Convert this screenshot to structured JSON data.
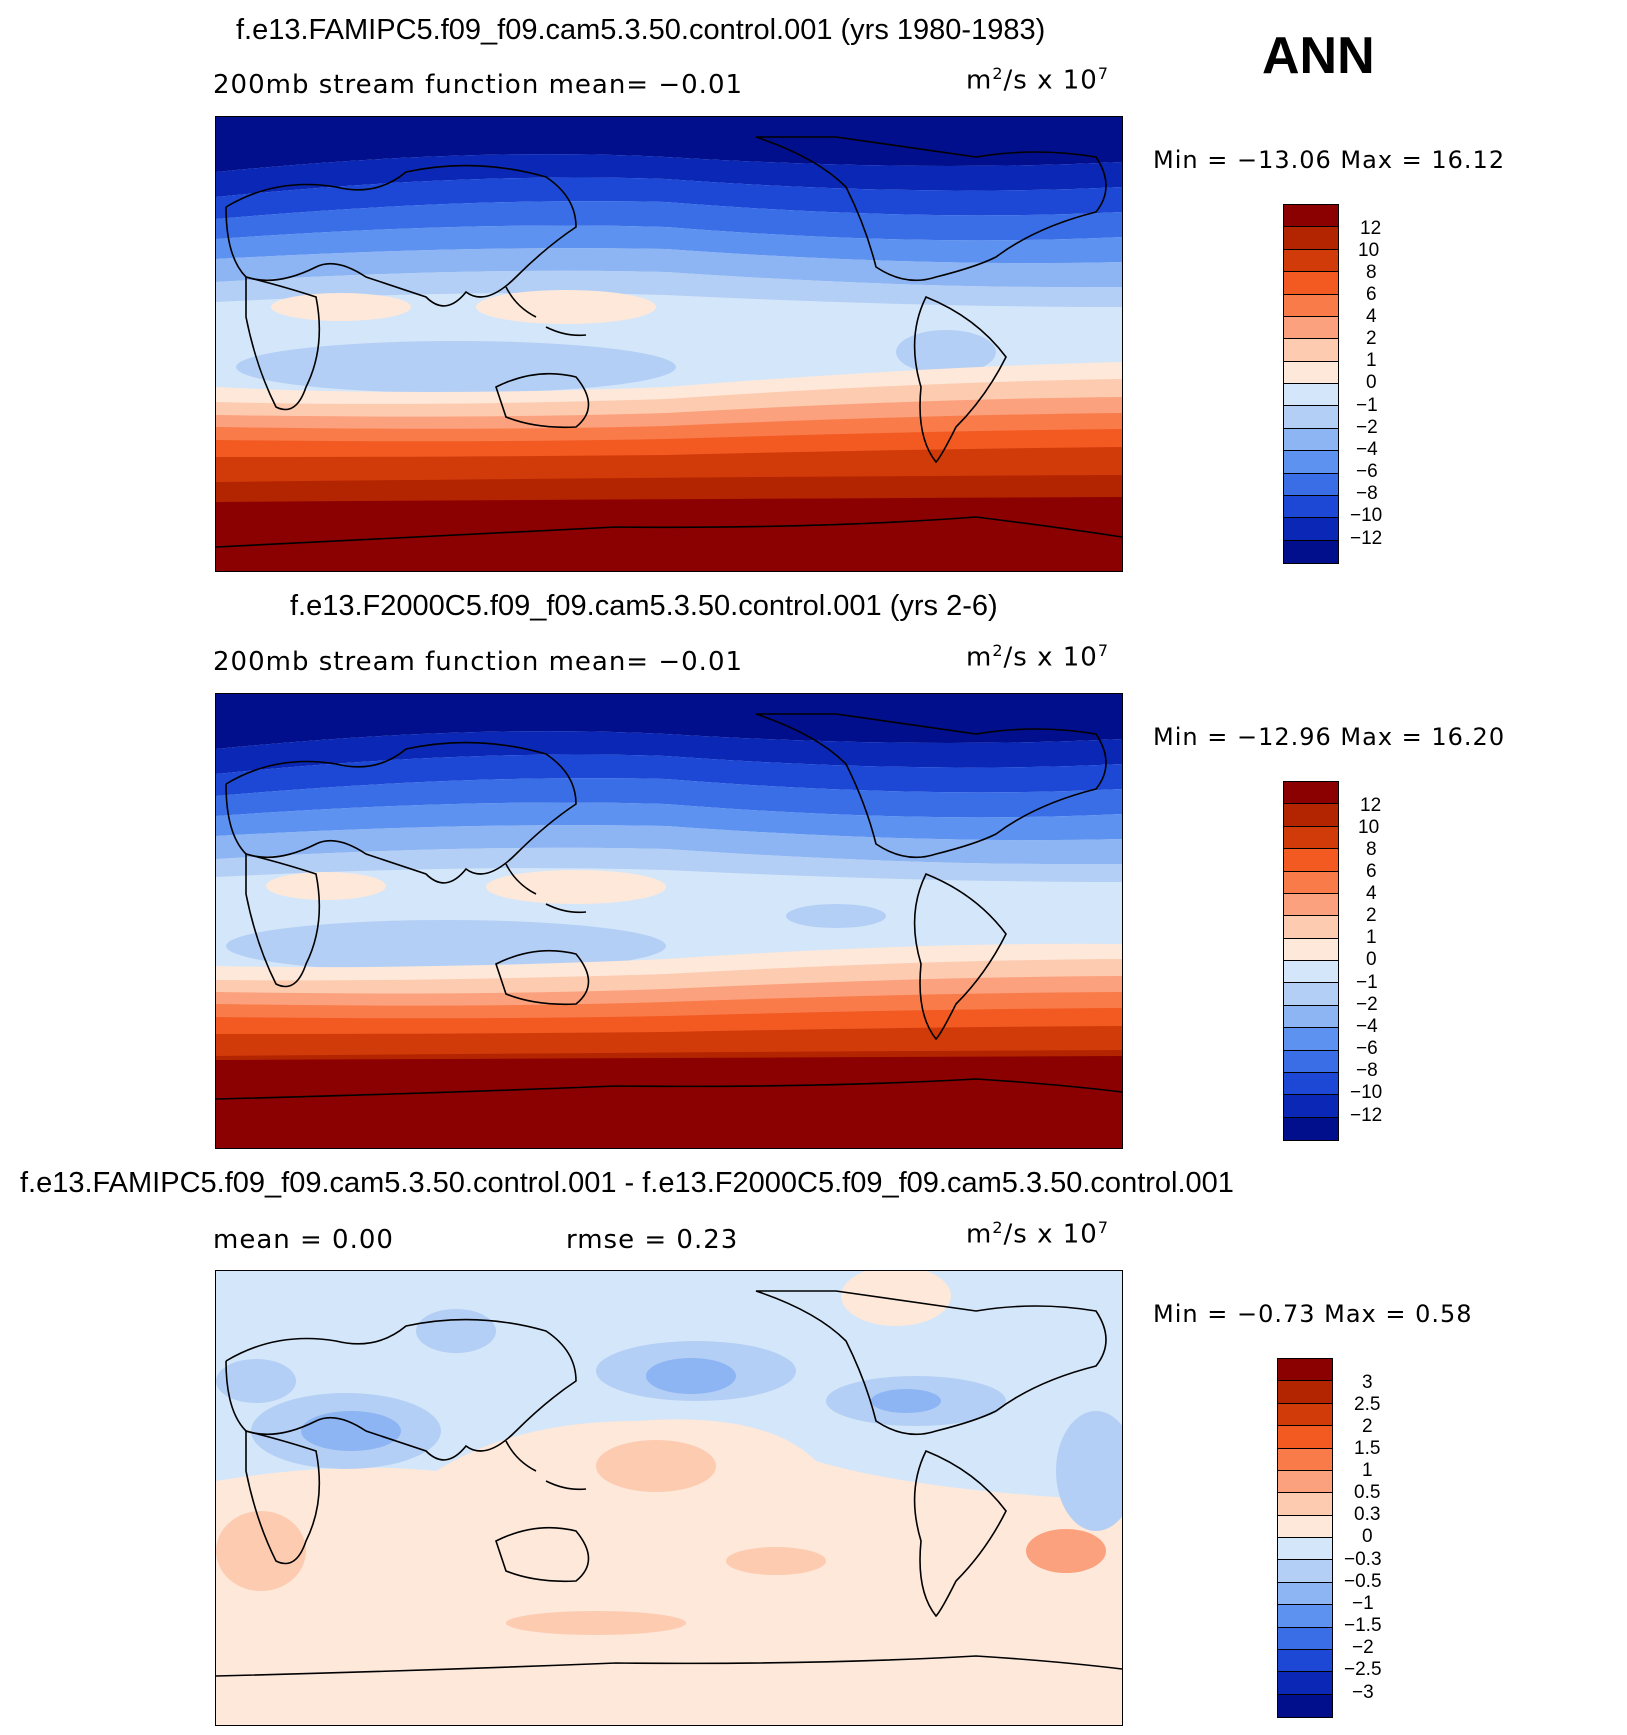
{
  "season": "ANN",
  "panels": [
    {
      "title": "f.e13.FAMIPC5.f09_f09.cam5.3.50.control.001 (yrs 1980-1983)",
      "left_label": "200mb stream function   mean=  −0.01",
      "units_base": "m",
      "units_exp1": "2",
      "units_mid": "/s x 10",
      "units_exp2": "7",
      "minmax": "Min = −13.06 Max =   16.12",
      "colorbar_labels": [
        "12",
        "10",
        "8",
        "6",
        "4",
        "2",
        "1",
        "0",
        "−1",
        "−2",
        "−4",
        "−6",
        "−8",
        "−10",
        "−12"
      ]
    },
    {
      "title": "f.e13.F2000C5.f09_f09.cam5.3.50.control.001 (yrs 2-6)",
      "left_label": "200mb stream function   mean=  −0.01",
      "units_base": "m",
      "units_exp1": "2",
      "units_mid": "/s x 10",
      "units_exp2": "7",
      "minmax": "Min = −12.96 Max =   16.20",
      "colorbar_labels": [
        "12",
        "10",
        "8",
        "6",
        "4",
        "2",
        "1",
        "0",
        "−1",
        "−2",
        "−4",
        "−6",
        "−8",
        "−10",
        "−12"
      ]
    },
    {
      "title": "f.e13.FAMIPC5.f09_f09.cam5.3.50.control.001 - f.e13.F2000C5.f09_f09.cam5.3.50.control.001",
      "left_label": "mean =    0.00",
      "right_label": "rmse =    0.23",
      "units_base": "m",
      "units_exp1": "2",
      "units_mid": "/s x 10",
      "units_exp2": "7",
      "minmax": "Min =  −0.73 Max =    0.58",
      "colorbar_labels": [
        "3",
        "2.5",
        "2",
        "1.5",
        "1",
        "0.5",
        "0.3",
        "0",
        "−0.3",
        "−0.5",
        "−1",
        "−1.5",
        "−2",
        "−2.5",
        "−3"
      ]
    }
  ],
  "colors": {
    "ramp": [
      "#8b0000",
      "#b32400",
      "#d13b0a",
      "#f25a22",
      "#f97b4a",
      "#fba17d",
      "#fdcbb0",
      "#fde8da",
      "#d4e6f9",
      "#b4cff5",
      "#8db4f3",
      "#5e92f0",
      "#3a6ee6",
      "#1d48d6",
      "#0a27b5",
      "#010f8c"
    ]
  }
}
